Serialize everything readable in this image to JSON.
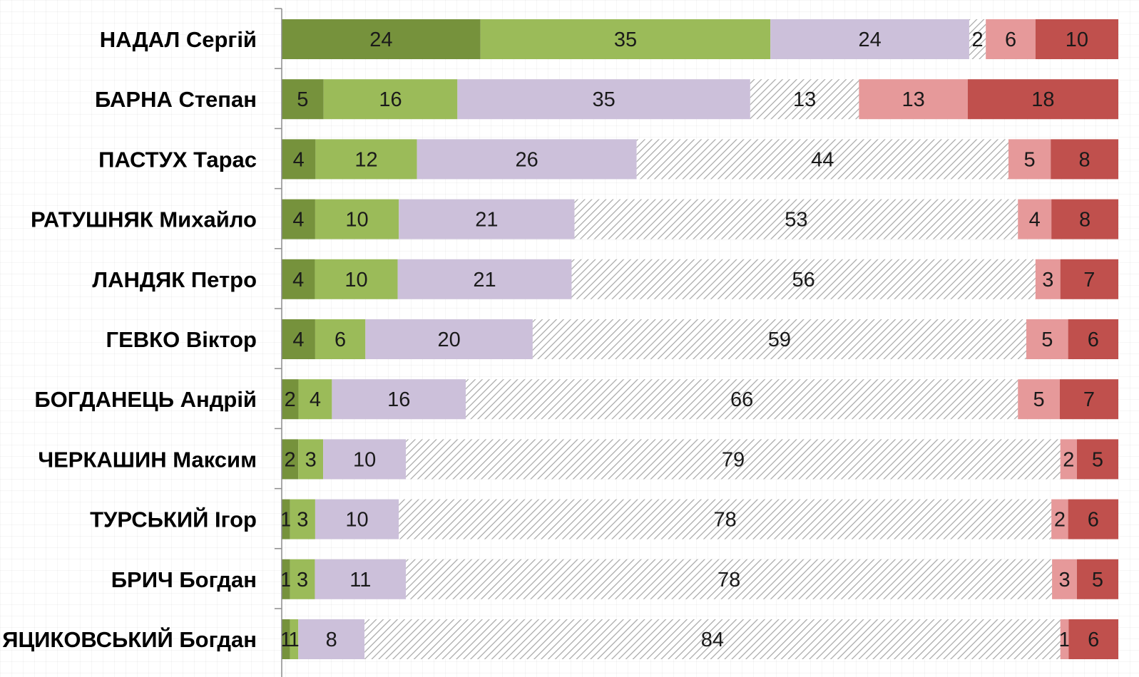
{
  "chart_data": {
    "type": "bar",
    "orientation": "horizontal",
    "stacked": true,
    "grid": false,
    "legend": "none",
    "categories": [
      "НАДАЛ Сергій",
      "БАРНА Степан",
      "ПАСТУХ Тарас",
      "РАТУШНЯК Михайло",
      "ЛАНДЯК Петро",
      "ГЕВКО Віктор",
      "БОГДАНЕЦЬ Андрій",
      "ЧЕРКАШИН Максим",
      "ТУРСЬКИЙ Ігор",
      "БРИЧ Богдан",
      "ЯЦИКОВСЬКИЙ Богдан"
    ],
    "series": [
      {
        "color": "#76923c",
        "values": [
          24,
          5,
          4,
          4,
          4,
          4,
          2,
          2,
          1,
          1,
          1
        ]
      },
      {
        "color": "#9bbb59",
        "values": [
          35,
          16,
          12,
          10,
          10,
          6,
          4,
          3,
          3,
          3,
          1
        ]
      },
      {
        "color": "#ccc0da",
        "values": [
          24,
          35,
          26,
          21,
          21,
          20,
          16,
          10,
          10,
          11,
          8
        ]
      },
      {
        "color": "hatched-gray",
        "values": [
          2,
          13,
          44,
          53,
          56,
          59,
          66,
          79,
          78,
          78,
          84
        ]
      },
      {
        "color": "#e6999a",
        "values": [
          6,
          13,
          5,
          4,
          3,
          5,
          5,
          2,
          2,
          3,
          1
        ]
      },
      {
        "color": "#c0504d",
        "values": [
          10,
          18,
          8,
          8,
          7,
          6,
          7,
          5,
          6,
          5,
          6
        ]
      }
    ]
  }
}
